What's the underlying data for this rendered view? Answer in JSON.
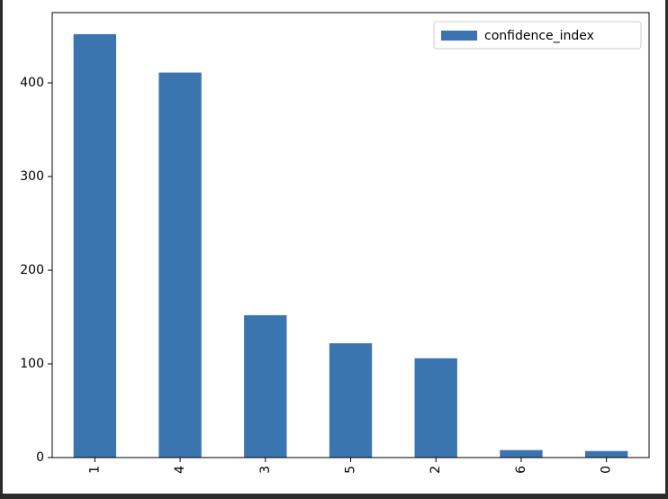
{
  "chart_data": {
    "type": "bar",
    "categories": [
      "1",
      "4",
      "3",
      "5",
      "2",
      "6",
      "0"
    ],
    "series": [
      {
        "name": "confidence_index",
        "values": [
          452,
          411,
          152,
          122,
          106,
          8,
          7
        ],
        "color": "#3a75b0"
      }
    ],
    "ylim": [
      0,
      475
    ],
    "yticks": [
      0,
      100,
      200,
      300,
      400
    ],
    "ytick_labels": [
      "0",
      "100",
      "200",
      "300",
      "400"
    ],
    "xtick_rotation": 90,
    "legend": {
      "position": "top-right",
      "label": "confidence_index"
    },
    "grid": false,
    "background": "#ffffff",
    "frame_color": "#2b2b2b"
  }
}
